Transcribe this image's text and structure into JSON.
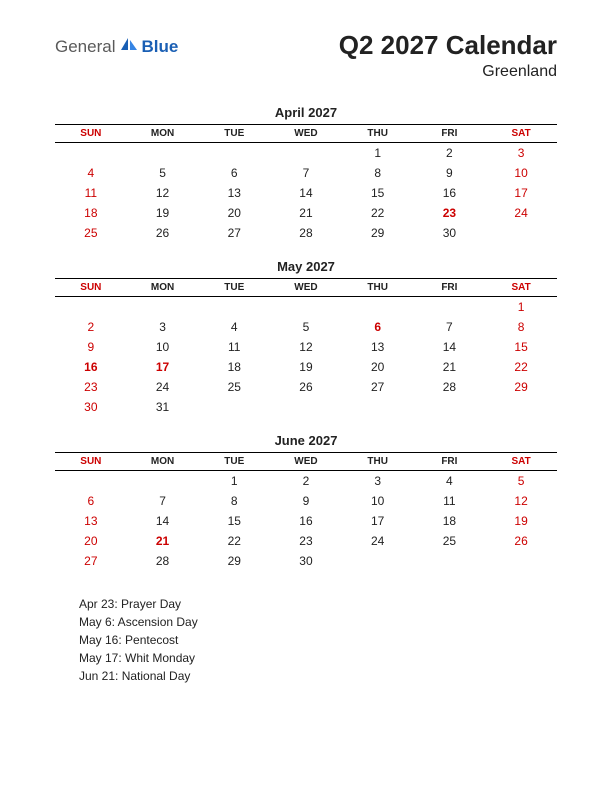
{
  "logo": {
    "general": "General",
    "blue": "Blue"
  },
  "title": "Q2 2027 Calendar",
  "subtitle": "Greenland",
  "day_headers": [
    "SUN",
    "MON",
    "TUE",
    "WED",
    "THU",
    "FRI",
    "SAT"
  ],
  "colors": {
    "text": "#222222",
    "weekend": "#cc0000",
    "border": "#000000",
    "logo_gray": "#5a5a5a",
    "logo_blue": "#1a5fb4",
    "background": "#ffffff"
  },
  "typography": {
    "title_fontsize": 26,
    "subtitle_fontsize": 16,
    "month_title_fontsize": 13,
    "header_fontsize": 10,
    "cell_fontsize": 12,
    "holidays_fontsize": 12
  },
  "months": [
    {
      "name": "April 2027",
      "weeks": [
        [
          null,
          null,
          null,
          null,
          {
            "d": 1
          },
          {
            "d": 2
          },
          {
            "d": 3,
            "w": true
          }
        ],
        [
          {
            "d": 4,
            "w": true
          },
          {
            "d": 5
          },
          {
            "d": 6
          },
          {
            "d": 7
          },
          {
            "d": 8
          },
          {
            "d": 9
          },
          {
            "d": 10,
            "w": true
          }
        ],
        [
          {
            "d": 11,
            "w": true
          },
          {
            "d": 12
          },
          {
            "d": 13
          },
          {
            "d": 14
          },
          {
            "d": 15
          },
          {
            "d": 16
          },
          {
            "d": 17,
            "w": true
          }
        ],
        [
          {
            "d": 18,
            "w": true
          },
          {
            "d": 19
          },
          {
            "d": 20
          },
          {
            "d": 21
          },
          {
            "d": 22
          },
          {
            "d": 23,
            "h": true
          },
          {
            "d": 24,
            "w": true
          }
        ],
        [
          {
            "d": 25,
            "w": true
          },
          {
            "d": 26
          },
          {
            "d": 27
          },
          {
            "d": 28
          },
          {
            "d": 29
          },
          {
            "d": 30
          },
          null
        ]
      ]
    },
    {
      "name": "May 2027",
      "weeks": [
        [
          null,
          null,
          null,
          null,
          null,
          null,
          {
            "d": 1,
            "w": true
          }
        ],
        [
          {
            "d": 2,
            "w": true
          },
          {
            "d": 3
          },
          {
            "d": 4
          },
          {
            "d": 5
          },
          {
            "d": 6,
            "h": true
          },
          {
            "d": 7
          },
          {
            "d": 8,
            "w": true
          }
        ],
        [
          {
            "d": 9,
            "w": true
          },
          {
            "d": 10
          },
          {
            "d": 11
          },
          {
            "d": 12
          },
          {
            "d": 13
          },
          {
            "d": 14
          },
          {
            "d": 15,
            "w": true
          }
        ],
        [
          {
            "d": 16,
            "h": true
          },
          {
            "d": 17,
            "h": true
          },
          {
            "d": 18
          },
          {
            "d": 19
          },
          {
            "d": 20
          },
          {
            "d": 21
          },
          {
            "d": 22,
            "w": true
          }
        ],
        [
          {
            "d": 23,
            "w": true
          },
          {
            "d": 24
          },
          {
            "d": 25
          },
          {
            "d": 26
          },
          {
            "d": 27
          },
          {
            "d": 28
          },
          {
            "d": 29,
            "w": true
          }
        ],
        [
          {
            "d": 30,
            "w": true
          },
          {
            "d": 31
          },
          null,
          null,
          null,
          null,
          null
        ]
      ]
    },
    {
      "name": "June 2027",
      "weeks": [
        [
          null,
          null,
          {
            "d": 1
          },
          {
            "d": 2
          },
          {
            "d": 3
          },
          {
            "d": 4
          },
          {
            "d": 5,
            "w": true
          }
        ],
        [
          {
            "d": 6,
            "w": true
          },
          {
            "d": 7
          },
          {
            "d": 8
          },
          {
            "d": 9
          },
          {
            "d": 10
          },
          {
            "d": 11
          },
          {
            "d": 12,
            "w": true
          }
        ],
        [
          {
            "d": 13,
            "w": true
          },
          {
            "d": 14
          },
          {
            "d": 15
          },
          {
            "d": 16
          },
          {
            "d": 17
          },
          {
            "d": 18
          },
          {
            "d": 19,
            "w": true
          }
        ],
        [
          {
            "d": 20,
            "w": true
          },
          {
            "d": 21,
            "h": true
          },
          {
            "d": 22
          },
          {
            "d": 23
          },
          {
            "d": 24
          },
          {
            "d": 25
          },
          {
            "d": 26,
            "w": true
          }
        ],
        [
          {
            "d": 27,
            "w": true
          },
          {
            "d": 28
          },
          {
            "d": 29
          },
          {
            "d": 30
          },
          null,
          null,
          null
        ]
      ]
    }
  ],
  "holidays": [
    "Apr 23: Prayer Day",
    "May 6: Ascension Day",
    "May 16: Pentecost",
    "May 17: Whit Monday",
    "Jun 21: National Day"
  ]
}
